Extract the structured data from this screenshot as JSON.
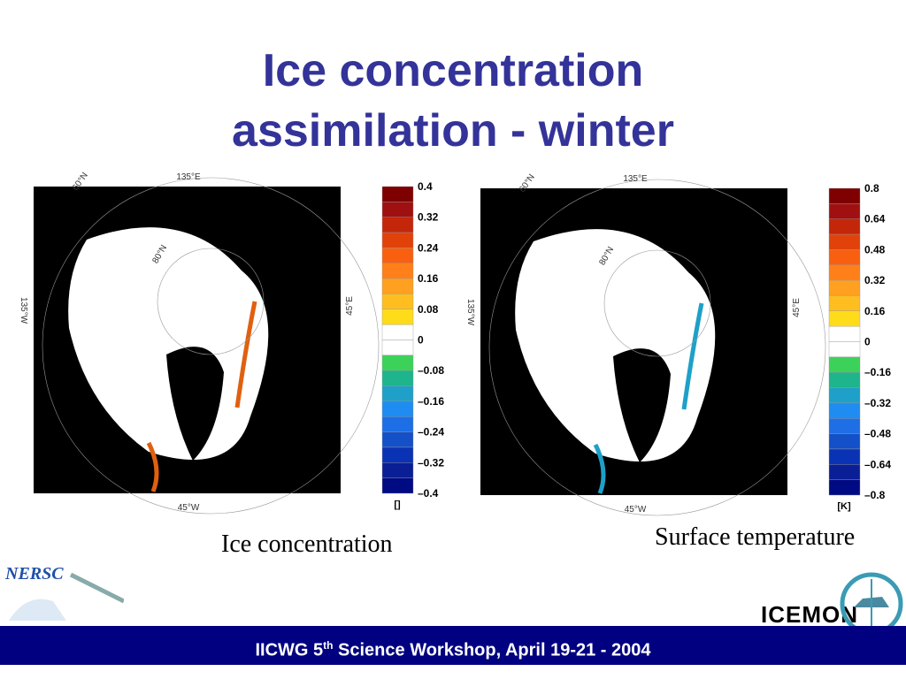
{
  "title": {
    "line1": "Ice concentration",
    "line2": "assimilation - winter"
  },
  "left_panel": {
    "map_labels": {
      "top": "135°E",
      "top_left": "60°N",
      "inner": "80°N",
      "left": "135°W",
      "right": "45°E",
      "bottom": "45°W"
    },
    "colorbar_labels": [
      "0.4",
      "0.32",
      "0.24",
      "0.16",
      "0.08",
      "0",
      "–0.08",
      "–0.16",
      "–0.24",
      "–0.32",
      "–0.4"
    ],
    "unit": "[]",
    "caption": "Ice concentration"
  },
  "right_panel": {
    "map_labels": {
      "top": "135°E",
      "top_left": "60°N",
      "inner": "80°N",
      "left": "135°W",
      "right": "45°E",
      "bottom": "45°W"
    },
    "colorbar_labels": [
      "0.8",
      "0.64",
      "0.48",
      "0.32",
      "0.16",
      "0",
      "–0.16",
      "–0.32",
      "–0.48",
      "–0.64",
      "–0.8"
    ],
    "unit": "[K]",
    "caption": "Surface temperature"
  },
  "logos": {
    "left": "NERSC",
    "right": "ICEMON"
  },
  "footer": {
    "before": "IICWG 5",
    "sup": "th",
    "after": " Science Workshop, April 19-21 - 2004"
  }
}
